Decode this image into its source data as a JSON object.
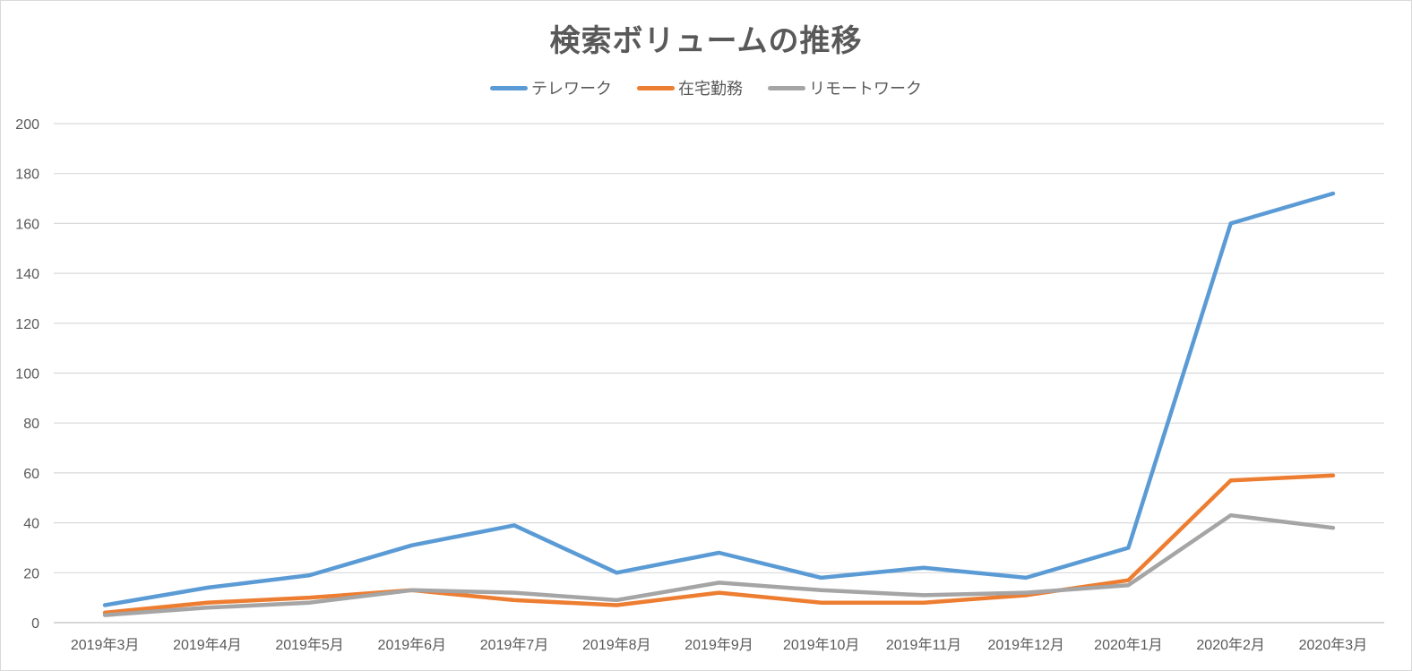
{
  "chart_data": {
    "type": "line",
    "title": "検索ボリュームの推移",
    "xlabel": "",
    "ylabel": "",
    "categories": [
      "2019年3月",
      "2019年4月",
      "2019年5月",
      "2019年6月",
      "2019年7月",
      "2019年8月",
      "2019年9月",
      "2019年10月",
      "2019年11月",
      "2019年12月",
      "2020年1月",
      "2020年2月",
      "2020年3月"
    ],
    "ylim": [
      0,
      200
    ],
    "yticks": [
      "0",
      "20",
      "40",
      "60",
      "80",
      "100",
      "120",
      "140",
      "160",
      "180",
      "200"
    ],
    "grid": true,
    "legend_position": "top",
    "series": [
      {
        "name": "テレワーク",
        "color": "#5b9bd5",
        "values": [
          7,
          14,
          19,
          31,
          39,
          20,
          28,
          18,
          22,
          18,
          30,
          160,
          172
        ]
      },
      {
        "name": "在宅勤務",
        "color": "#ed7d31",
        "values": [
          4,
          8,
          10,
          13,
          9,
          7,
          12,
          8,
          8,
          11,
          17,
          57,
          59
        ]
      },
      {
        "name": "リモートワーク",
        "color": "#a5a5a5",
        "values": [
          3,
          6,
          8,
          13,
          12,
          9,
          16,
          13,
          11,
          12,
          15,
          43,
          38
        ]
      }
    ]
  }
}
